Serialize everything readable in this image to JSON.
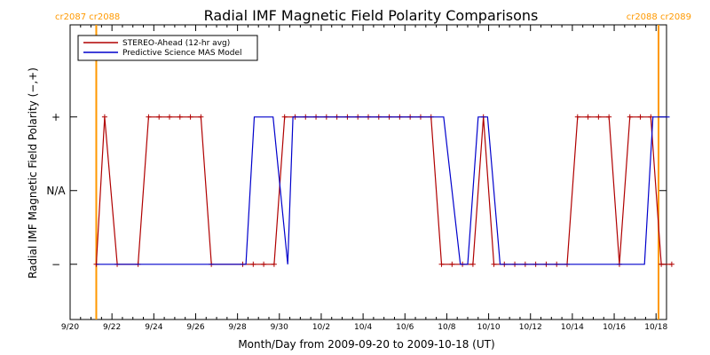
{
  "chart_data": {
    "type": "line",
    "title": "Radial IMF Magnetic Field Polarity Comparisons",
    "xlabel": "Month/Day from 2009-09-20 to 2009-10-18 (UT)",
    "ylabel": "Radial IMF Magnetic Field Polarity (−,+)",
    "x_unit": "days",
    "xlim": [
      0,
      28.5
    ],
    "ylim": [
      -1.75,
      2.25
    ],
    "x_ticks": [
      {
        "x": 0,
        "label": "9/20"
      },
      {
        "x": 2,
        "label": "9/22"
      },
      {
        "x": 4,
        "label": "9/24"
      },
      {
        "x": 6,
        "label": "9/26"
      },
      {
        "x": 8,
        "label": "9/28"
      },
      {
        "x": 10,
        "label": "9/30"
      },
      {
        "x": 12,
        "label": "10/2"
      },
      {
        "x": 14,
        "label": "10/4"
      },
      {
        "x": 16,
        "label": "10/6"
      },
      {
        "x": 18,
        "label": "10/8"
      },
      {
        "x": 20,
        "label": "10/10"
      },
      {
        "x": 22,
        "label": "10/12"
      },
      {
        "x": 24,
        "label": "10/14"
      },
      {
        "x": 26,
        "label": "10/16"
      },
      {
        "x": 28,
        "label": "10/18"
      }
    ],
    "y_ticks": [
      {
        "y": 1,
        "label": "+"
      },
      {
        "y": 0,
        "label": "N/A"
      },
      {
        "y": -1,
        "label": "−"
      }
    ],
    "grid": false,
    "legend_position": "top-left",
    "carrington_markers": [
      {
        "x": 1.25,
        "label": "cr2087 cr2088",
        "side": "left"
      },
      {
        "x": 28.6,
        "label": "cr2088 cr2089",
        "side": "right"
      }
    ],
    "series": [
      {
        "name": "STEREO-Ahead (12-hr avg)",
        "color": "#b00000",
        "marker": "plus",
        "x": [
          1.25,
          1.65,
          2.25,
          3.25,
          3.75,
          4.25,
          4.75,
          5.25,
          5.75,
          6.25,
          6.75,
          8.25,
          8.75,
          9.25,
          9.75,
          10.25,
          10.75,
          11.25,
          11.75,
          12.25,
          12.75,
          13.25,
          13.75,
          14.25,
          14.75,
          15.25,
          15.75,
          16.25,
          16.75,
          17.25,
          17.75,
          18.25,
          18.75,
          19.25,
          19.75,
          20.25,
          20.75,
          21.25,
          21.75,
          22.25,
          22.75,
          23.25,
          23.75,
          24.25,
          24.75,
          25.25,
          25.75,
          26.25,
          26.75,
          27.25,
          27.75,
          28.25,
          28.75
        ],
        "y": [
          -1,
          1,
          -1,
          -1,
          1,
          1,
          1,
          1,
          1,
          1,
          -1,
          -1,
          -1,
          -1,
          -1,
          1,
          1,
          1,
          1,
          1,
          1,
          1,
          1,
          1,
          1,
          1,
          1,
          1,
          1,
          1,
          -1,
          -1,
          -1,
          -1,
          1,
          -1,
          -1,
          -1,
          -1,
          -1,
          -1,
          -1,
          -1,
          1,
          1,
          1,
          1,
          -1,
          1,
          1,
          1,
          -1,
          -1
        ]
      },
      {
        "name": "Predictive Science MAS Model",
        "color": "#0000cc",
        "marker": "none",
        "x": [
          1.25,
          8.4,
          8.8,
          9.7,
          10.4,
          10.65,
          17.85,
          18.65,
          19.0,
          19.5,
          19.95,
          20.55,
          27.45,
          27.85,
          28.65
        ],
        "y": [
          -1,
          -1,
          1,
          1,
          -1,
          1,
          1,
          -1,
          -1,
          1,
          1,
          -1,
          -1,
          1,
          1
        ]
      }
    ]
  }
}
